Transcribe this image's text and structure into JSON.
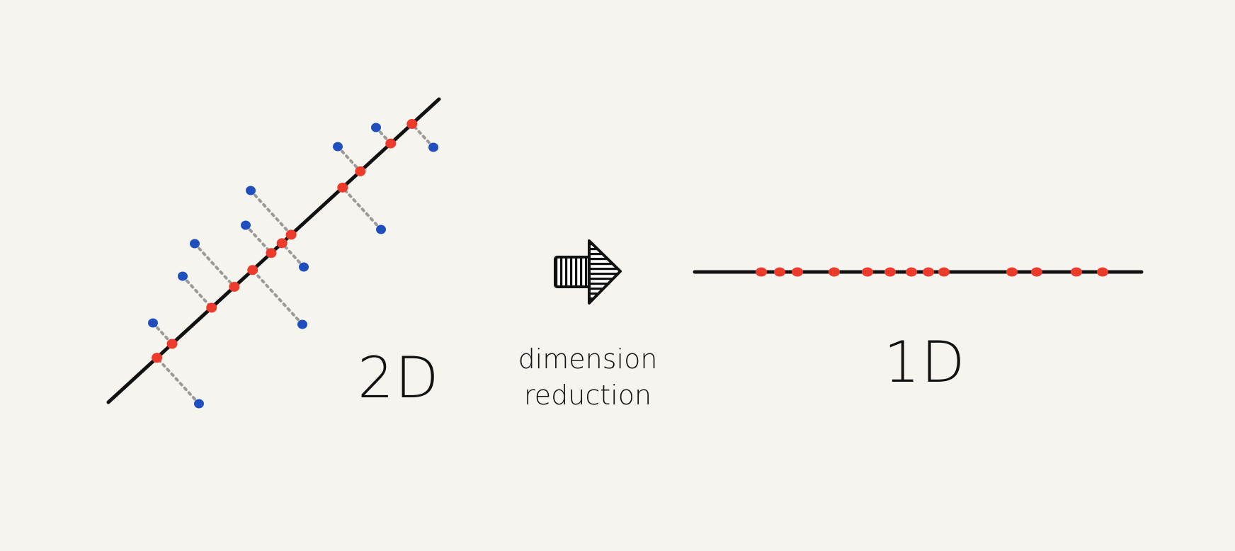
{
  "labels": {
    "left": "2D",
    "middle_line1": "dimension",
    "middle_line2": "reduction",
    "right": "1D"
  },
  "colors": {
    "background": "#f6f4ef",
    "line": "#111111",
    "original_point": "#1f4fbf",
    "projected_point": "#ec3b2b",
    "projection_guide": "#9a9a9a"
  },
  "icons": {
    "arrow": "hatched-right-arrow"
  }
}
